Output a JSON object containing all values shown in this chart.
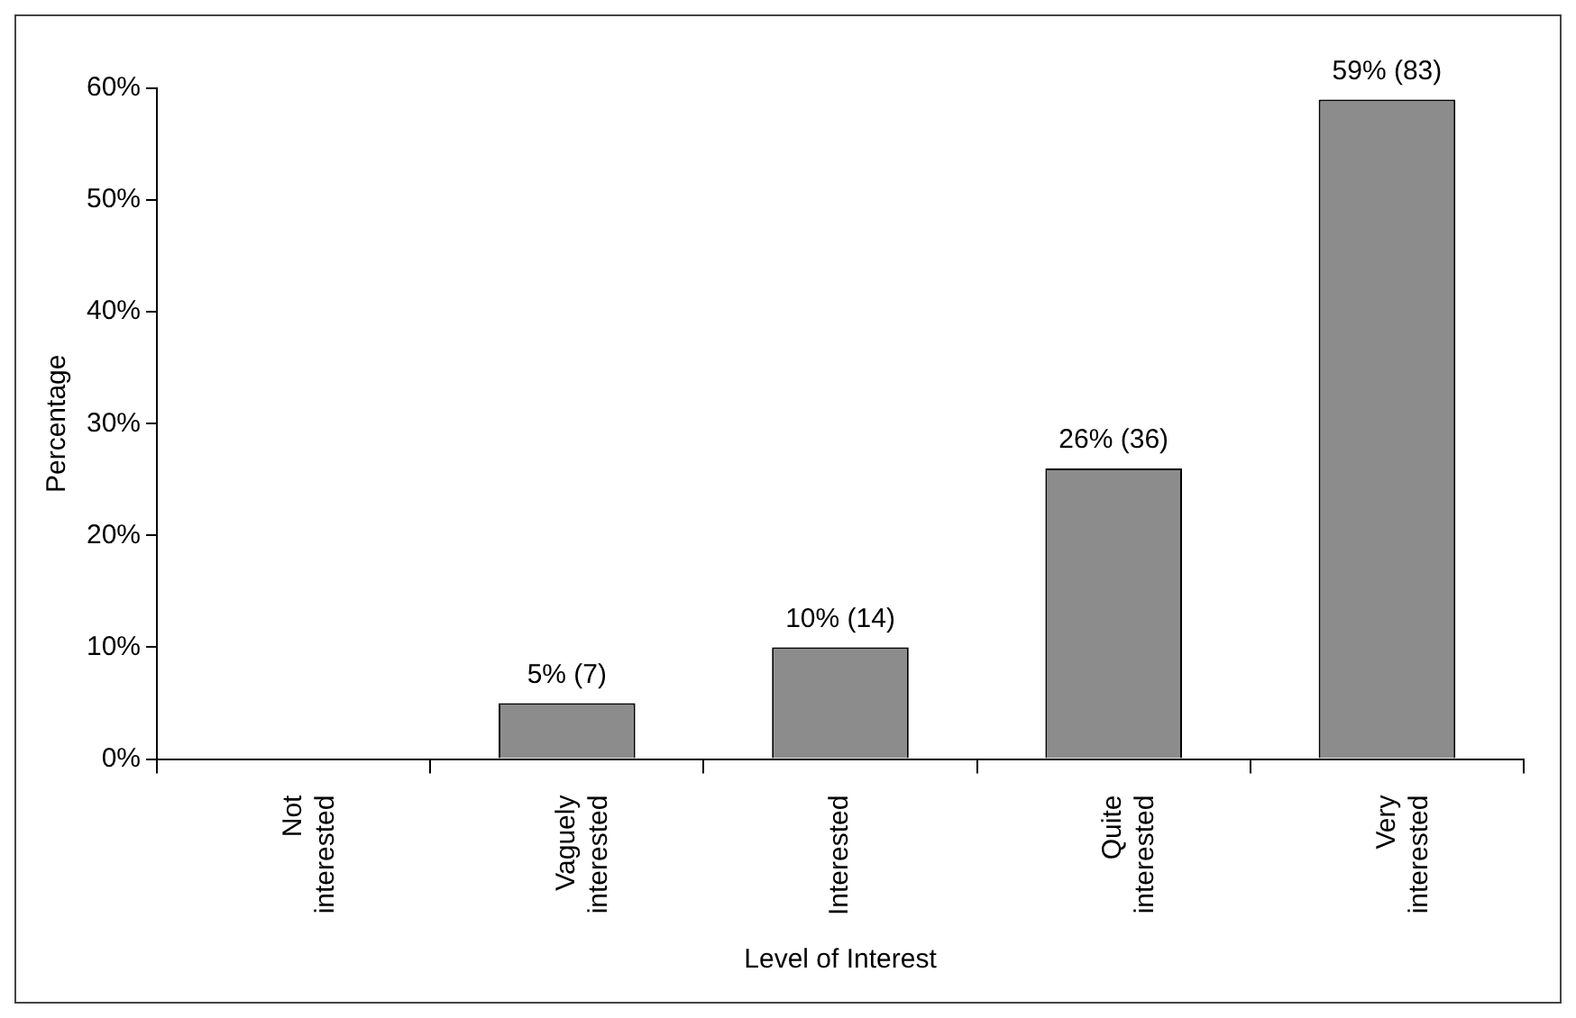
{
  "chart_data": {
    "type": "bar",
    "xlabel": "Level of Interest",
    "ylabel": "Percentage",
    "categories": [
      "Not interested",
      "Vaguely interested",
      "Interested",
      "Quite interested",
      "Very interested"
    ],
    "values": [
      0,
      5,
      10,
      26,
      59
    ],
    "value_labels": [
      null,
      "5% (7)",
      "10% (14)",
      "26% (36)",
      "59% (83)"
    ],
    "color": "#8c8c8c",
    "ylim": [
      0,
      60
    ],
    "yticks": [
      {
        "value": 0,
        "label": "0%"
      },
      {
        "value": 10,
        "label": "10%"
      },
      {
        "value": 20,
        "label": "20%"
      },
      {
        "value": 30,
        "label": "30%"
      },
      {
        "value": 40,
        "label": "40%"
      },
      {
        "value": 50,
        "label": "50%"
      },
      {
        "value": 60,
        "label": "60%"
      }
    ],
    "grid": false,
    "legend": false
  }
}
